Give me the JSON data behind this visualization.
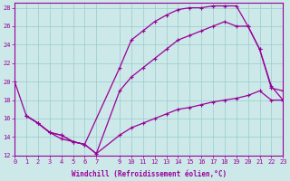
{
  "bg_color": "#cce8e8",
  "grid_color": "#99cccc",
  "line_color": "#990099",
  "xlim": [
    0,
    23
  ],
  "ylim": [
    12,
    28.5
  ],
  "yticks": [
    12,
    14,
    16,
    18,
    20,
    22,
    24,
    26,
    28
  ],
  "xticks": [
    0,
    1,
    2,
    3,
    4,
    5,
    6,
    7,
    9,
    10,
    11,
    12,
    13,
    14,
    15,
    16,
    17,
    18,
    19,
    20,
    21,
    22,
    23
  ],
  "xlabel": "Windchill (Refroidissement éolien,°C)",
  "curve_bottom_x": [
    0,
    1,
    2,
    3,
    4,
    5,
    6,
    7,
    9,
    10,
    11,
    12,
    13,
    14,
    15,
    16,
    17,
    18,
    19,
    20,
    21,
    22,
    23
  ],
  "curve_bottom_y": [
    20.0,
    16.3,
    15.5,
    14.5,
    13.8,
    13.5,
    13.2,
    12.2,
    14.2,
    15.0,
    15.5,
    16.0,
    16.5,
    17.0,
    17.2,
    17.5,
    17.8,
    18.0,
    18.2,
    18.5,
    19.0,
    18.0,
    18.0
  ],
  "curve_mid_x": [
    1,
    2,
    3,
    4,
    5,
    6,
    7,
    9,
    10,
    11,
    12,
    13,
    14,
    15,
    16,
    17,
    18,
    19,
    20,
    21,
    22,
    23
  ],
  "curve_mid_y": [
    16.3,
    15.5,
    14.5,
    14.2,
    13.5,
    13.2,
    12.2,
    19.0,
    20.5,
    21.5,
    22.5,
    23.5,
    24.5,
    25.0,
    25.5,
    26.0,
    26.5,
    26.0,
    26.0,
    23.5,
    19.5,
    18.0
  ],
  "curve_top_x": [
    1,
    2,
    3,
    4,
    5,
    6,
    9,
    10,
    11,
    12,
    13,
    14,
    15,
    16,
    17,
    18,
    19,
    20,
    21,
    22,
    23
  ],
  "curve_top_y": [
    16.3,
    15.5,
    14.5,
    14.2,
    13.5,
    13.2,
    21.5,
    24.5,
    25.5,
    26.5,
    27.2,
    27.8,
    28.0,
    28.0,
    28.2,
    28.2,
    28.2,
    26.0,
    23.5,
    19.3,
    19.0
  ]
}
